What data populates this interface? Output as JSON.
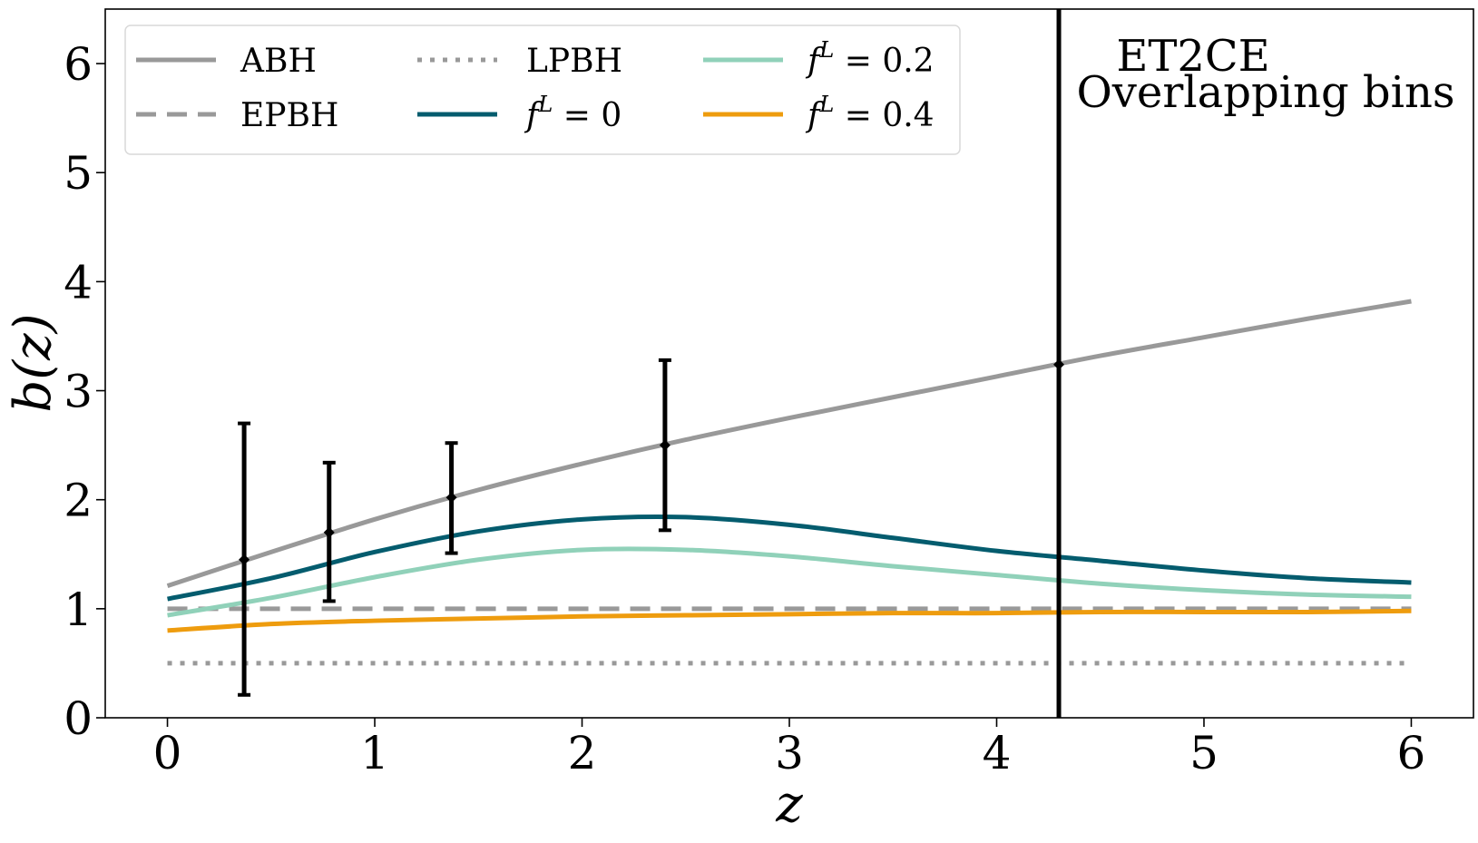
{
  "chart_data": {
    "type": "line",
    "title": "",
    "xlabel": "z",
    "ylabel": "b(z)",
    "xlim": [
      -0.3,
      6.3
    ],
    "ylim": [
      0,
      6.5
    ],
    "xticks": [
      0,
      1,
      2,
      3,
      4,
      5,
      6
    ],
    "yticks": [
      0,
      1,
      2,
      3,
      4,
      5,
      6
    ],
    "grid": false,
    "legend_position": "top-left",
    "annotation_lines": [
      "ET2CE",
      "Overlapping bins"
    ],
    "series": [
      {
        "name": "ABH",
        "style": "solid",
        "color": "#999999",
        "x": [
          0,
          0.5,
          1,
          1.5,
          2,
          2.5,
          3,
          3.5,
          4,
          4.5,
          5,
          5.5,
          6
        ],
        "y": [
          1.21,
          1.52,
          1.82,
          2.09,
          2.33,
          2.55,
          2.75,
          2.94,
          3.13,
          3.32,
          3.49,
          3.66,
          3.82
        ]
      },
      {
        "name": "EPBH",
        "style": "dashed",
        "color": "#999999",
        "x": [
          0,
          6
        ],
        "y": [
          1.0,
          1.0
        ]
      },
      {
        "name": "LPBH",
        "style": "dotted",
        "color": "#999999",
        "x": [
          0,
          6
        ],
        "y": [
          0.5,
          0.5
        ]
      },
      {
        "name": "f^L = 0",
        "label_base": "f",
        "label_sup": "L",
        "label_rest": " = 0",
        "style": "solid",
        "color": "#045c6e",
        "x": [
          0,
          0.5,
          1,
          1.5,
          2,
          2.5,
          3,
          3.5,
          4,
          4.5,
          5,
          5.5,
          6
        ],
        "y": [
          1.09,
          1.28,
          1.52,
          1.71,
          1.82,
          1.84,
          1.77,
          1.65,
          1.53,
          1.44,
          1.35,
          1.28,
          1.24
        ]
      },
      {
        "name": "f^L = 0.2",
        "label_base": "f",
        "label_sup": "L",
        "label_rest": " = 0.2",
        "style": "solid",
        "color": "#90d1b9",
        "x": [
          0,
          0.5,
          1,
          1.5,
          2,
          2.5,
          3,
          3.5,
          4,
          4.5,
          5,
          5.5,
          6
        ],
        "y": [
          0.94,
          1.1,
          1.29,
          1.45,
          1.54,
          1.54,
          1.48,
          1.39,
          1.31,
          1.23,
          1.17,
          1.13,
          1.11
        ]
      },
      {
        "name": "f^L = 0.4",
        "label_base": "f",
        "label_sup": "L",
        "label_rest": " = 0.4",
        "style": "solid",
        "color": "#ee9c0e",
        "x": [
          0,
          0.5,
          1,
          1.5,
          2,
          2.5,
          3,
          3.5,
          4,
          4.5,
          5,
          5.5,
          6
        ],
        "y": [
          0.8,
          0.86,
          0.89,
          0.91,
          0.93,
          0.94,
          0.95,
          0.96,
          0.96,
          0.97,
          0.97,
          0.97,
          0.98
        ]
      }
    ],
    "error_bars": {
      "color": "#000000",
      "x": [
        0.37,
        0.78,
        1.37,
        2.4,
        4.3
      ],
      "y": [
        1.45,
        1.7,
        2.02,
        2.5,
        3.24
      ],
      "lower": [
        0.21,
        1.07,
        1.51,
        1.72,
        -10
      ],
      "upper": [
        2.7,
        2.34,
        2.52,
        3.28,
        20
      ]
    }
  }
}
